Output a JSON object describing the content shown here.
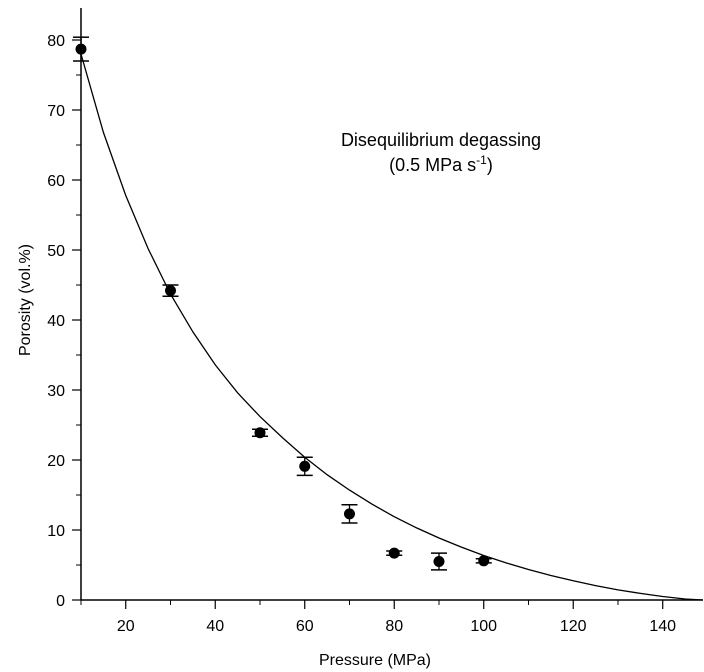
{
  "chart_data": {
    "type": "scatter",
    "xlabel": "Pressure (MPa)",
    "ylabel": "Porosity (vol.%)",
    "xlim": [
      10,
      149
    ],
    "ylim": [
      0,
      84
    ],
    "x_ticks": [
      20,
      40,
      60,
      80,
      100,
      120,
      140
    ],
    "y_ticks": [
      0,
      10,
      20,
      30,
      40,
      50,
      60,
      70,
      80
    ],
    "grid": false,
    "annotation": {
      "line1": "Disequilibrium degassing",
      "line2_prefix": "(0.5 MPa s",
      "line2_sup": "-1",
      "line2_suffix": ")"
    },
    "points": [
      {
        "x": 10,
        "y": 78.7,
        "err": 1.7
      },
      {
        "x": 30,
        "y": 44.2,
        "err": 0.8
      },
      {
        "x": 50,
        "y": 23.9,
        "err": 0.5
      },
      {
        "x": 60,
        "y": 19.1,
        "err": 1.3
      },
      {
        "x": 70,
        "y": 12.3,
        "err": 1.3
      },
      {
        "x": 80,
        "y": 6.7,
        "err": 0.3
      },
      {
        "x": 90,
        "y": 5.5,
        "err": 1.2
      },
      {
        "x": 100,
        "y": 5.6,
        "err": 0.3
      }
    ],
    "curve": {
      "x": [
        10,
        15,
        20,
        25,
        30,
        35,
        40,
        45,
        50,
        55,
        60,
        65,
        70,
        75,
        80,
        85,
        90,
        95,
        100,
        105,
        110,
        115,
        120,
        125,
        130,
        135,
        140,
        145,
        149
      ],
      "y": [
        78,
        66.8,
        57.8,
        50.2,
        43.7,
        38.3,
        33.6,
        29.6,
        26.2,
        23.2,
        20.4,
        17.9,
        15.7,
        13.7,
        11.9,
        10.3,
        8.85,
        7.55,
        6.35,
        5.3,
        4.35,
        3.5,
        2.75,
        2.05,
        1.45,
        0.95,
        0.5,
        0.15,
        0
      ]
    },
    "marker_color": "#000000",
    "line_color": "#000000"
  }
}
